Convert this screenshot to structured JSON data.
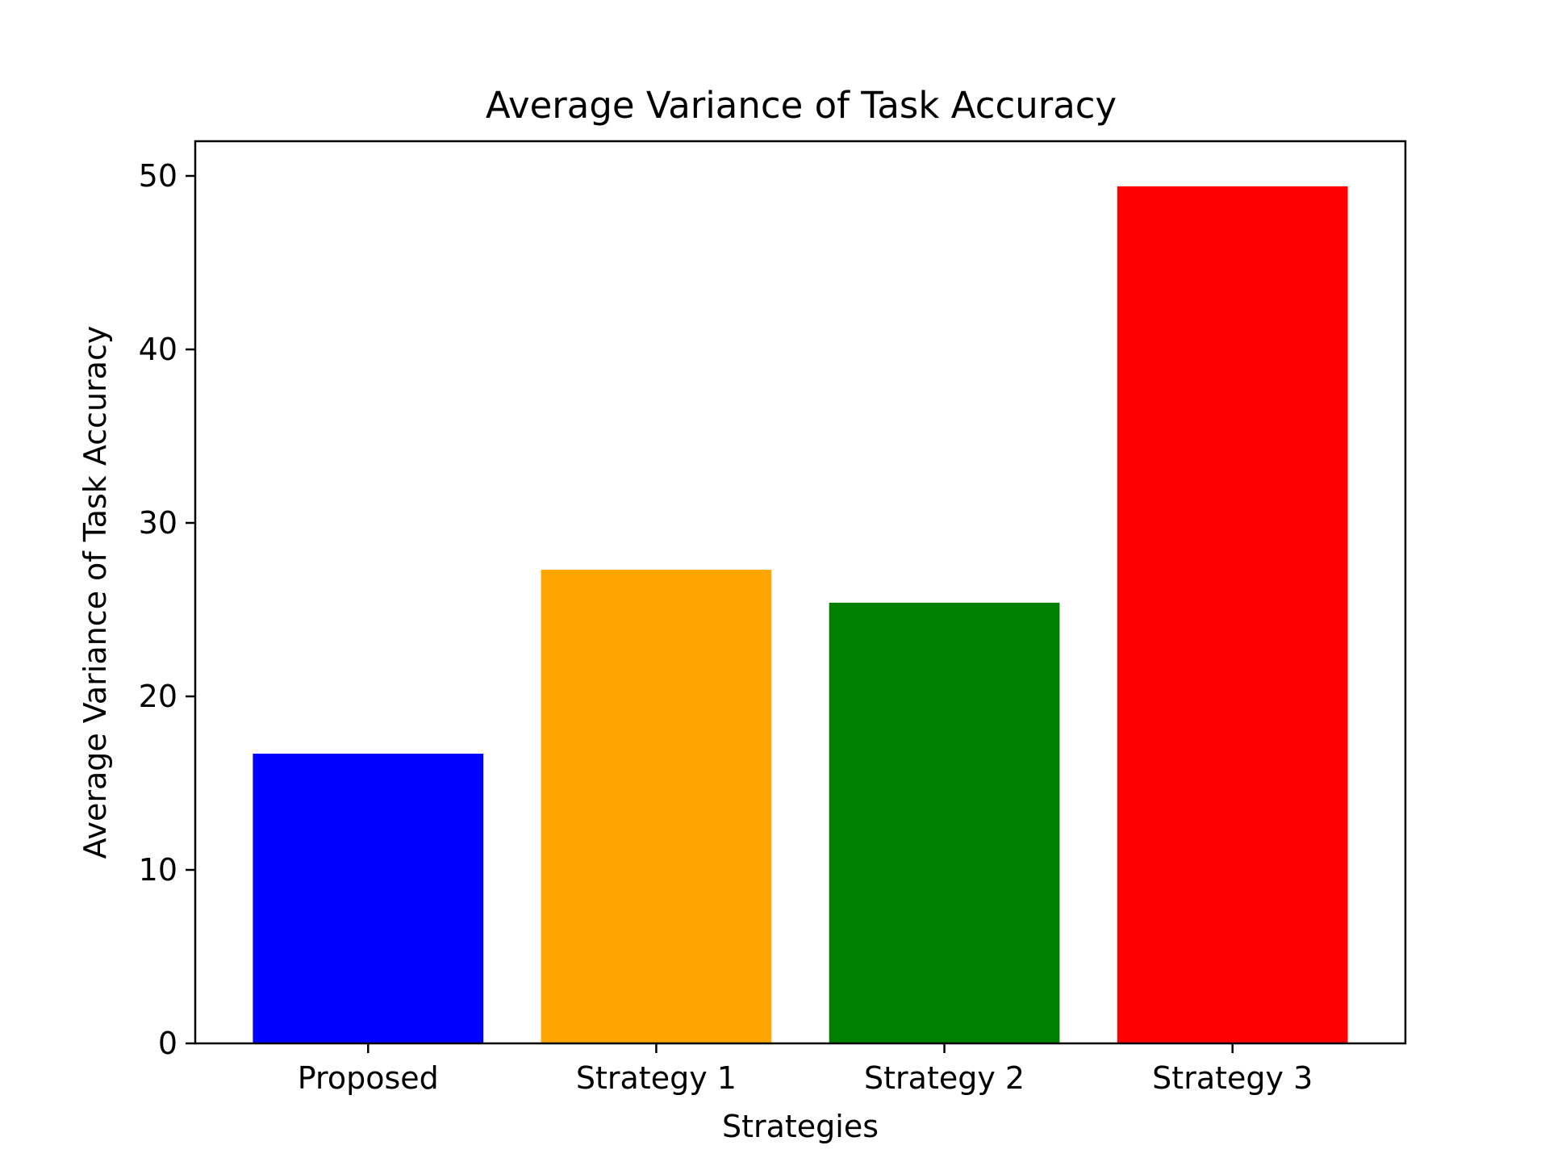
{
  "chart_data": {
    "type": "bar",
    "title": "Average Variance of Task Accuracy",
    "xlabel": "Strategies",
    "ylabel": "Average Variance of Task Accuracy",
    "categories": [
      "Proposed",
      "Strategy 1",
      "Strategy 2",
      "Strategy 3"
    ],
    "values": [
      16.7,
      27.3,
      25.4,
      49.4
    ],
    "colors": [
      "#0000ff",
      "#ffa500",
      "#008000",
      "#ff0000"
    ],
    "ylim": [
      0,
      52
    ],
    "yticks": [
      0,
      10,
      20,
      30,
      40,
      50
    ],
    "grid": false,
    "legend": "none"
  }
}
